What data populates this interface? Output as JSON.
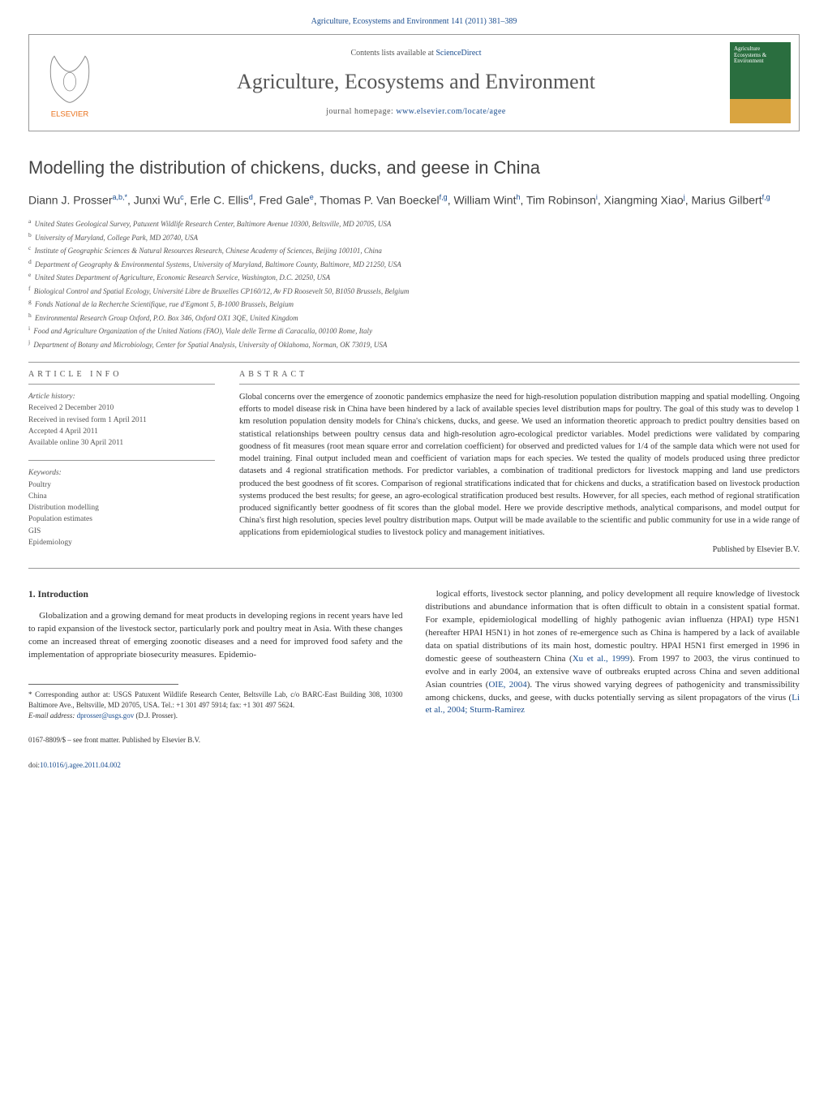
{
  "header": {
    "journal_ref": "Agriculture, Ecosystems and Environment 141 (2011) 381–389",
    "contents_prefix": "Contents lists available at ",
    "contents_link": "ScienceDirect",
    "journal_name": "Agriculture, Ecosystems and Environment",
    "homepage_prefix": "journal homepage: ",
    "homepage_link": "www.elsevier.com/locate/agee",
    "cover_line1": "Agriculture",
    "cover_line2": "Ecosystems &",
    "cover_line3": "Environment"
  },
  "article": {
    "title": "Modelling the distribution of chickens, ducks, and geese in China",
    "authors_html": "Diann J. Prosser<sup>a,b,*</sup>, Junxi Wu<sup>c</sup>, Erle C. Ellis<sup>d</sup>, Fred Gale<sup>e</sup>, Thomas P. Van Boeckel<sup>f,g</sup>, William Wint<sup>h</sup>, Tim Robinson<sup>i</sup>, Xiangming Xiao<sup>j</sup>, Marius Gilbert<sup>f,g</sup>"
  },
  "affiliations": [
    {
      "sup": "a",
      "text": "United States Geological Survey, Patuxent Wildlife Research Center, Baltimore Avenue 10300, Beltsville, MD 20705, USA"
    },
    {
      "sup": "b",
      "text": "University of Maryland, College Park, MD 20740, USA"
    },
    {
      "sup": "c",
      "text": "Institute of Geographic Sciences & Natural Resources Research, Chinese Academy of Sciences, Beijing 100101, China"
    },
    {
      "sup": "d",
      "text": "Department of Geography & Environmental Systems, University of Maryland, Baltimore County, Baltimore, MD 21250, USA"
    },
    {
      "sup": "e",
      "text": "United States Department of Agriculture, Economic Research Service, Washington, D.C. 20250, USA"
    },
    {
      "sup": "f",
      "text": "Biological Control and Spatial Ecology, Université Libre de Bruxelles CP160/12, Av FD Roosevelt 50, B1050 Brussels, Belgium"
    },
    {
      "sup": "g",
      "text": "Fonds National de la Recherche Scientifique, rue d'Egmont 5, B-1000 Brussels, Belgium"
    },
    {
      "sup": "h",
      "text": "Environmental Research Group Oxford, P.O. Box 346, Oxford OX1 3QE, United Kingdom"
    },
    {
      "sup": "i",
      "text": "Food and Agriculture Organization of the United Nations (FAO), Viale delle Terme di Caracalla, 00100 Rome, Italy"
    },
    {
      "sup": "j",
      "text": "Department of Botany and Microbiology, Center for Spatial Analysis, University of Oklahoma, Norman, OK 73019, USA"
    }
  ],
  "info": {
    "heading": "ARTICLE INFO",
    "history_label": "Article history:",
    "history": [
      "Received 2 December 2010",
      "Received in revised form 1 April 2011",
      "Accepted 4 April 2011",
      "Available online 30 April 2011"
    ],
    "keywords_label": "Keywords:",
    "keywords": [
      "Poultry",
      "China",
      "Distribution modelling",
      "Population estimates",
      "GIS",
      "Epidemiology"
    ]
  },
  "abstract": {
    "heading": "ABSTRACT",
    "text": "Global concerns over the emergence of zoonotic pandemics emphasize the need for high-resolution population distribution mapping and spatial modelling. Ongoing efforts to model disease risk in China have been hindered by a lack of available species level distribution maps for poultry. The goal of this study was to develop 1 km resolution population density models for China's chickens, ducks, and geese. We used an information theoretic approach to predict poultry densities based on statistical relationships between poultry census data and high-resolution agro-ecological predictor variables. Model predictions were validated by comparing goodness of fit measures (root mean square error and correlation coefficient) for observed and predicted values for 1/4 of the sample data which were not used for model training. Final output included mean and coefficient of variation maps for each species. We tested the quality of models produced using three predictor datasets and 4 regional stratification methods. For predictor variables, a combination of traditional predictors for livestock mapping and land use predictors produced the best goodness of fit scores. Comparison of regional stratifications indicated that for chickens and ducks, a stratification based on livestock production systems produced the best results; for geese, an agro-ecological stratification produced best results. However, for all species, each method of regional stratification produced significantly better goodness of fit scores than the global model. Here we provide descriptive methods, analytical comparisons, and model output for China's first high resolution, species level poultry distribution maps. Output will be made available to the scientific and public community for use in a wide range of applications from epidemiological studies to livestock policy and management initiatives.",
    "publisher": "Published by Elsevier B.V."
  },
  "body": {
    "section_heading": "1. Introduction",
    "col1_para": "Globalization and a growing demand for meat products in developing regions in recent years have led to rapid expansion of the livestock sector, particularly pork and poultry meat in Asia. With these changes come an increased threat of emerging zoonotic diseases and a need for improved food safety and the implementation of appropriate biosecurity measures. Epidemio-",
    "col2_para_pre": "logical efforts, livestock sector planning, and policy development all require knowledge of livestock distributions and abundance information that is often difficult to obtain in a consistent spatial format. For example, epidemiological modelling of highly pathogenic avian influenza (HPAI) type H5N1 (hereafter HPAI H5N1) in hot zones of re-emergence such as China is hampered by a lack of available data on spatial distributions of its main host, domestic poultry. HPAI H5N1 first emerged in 1996 in domestic geese of southeastern China (",
    "ref1": "Xu et al., 1999",
    "col2_para_mid1": "). From 1997 to 2003, the virus continued to evolve and in early 2004, an extensive wave of outbreaks erupted across China and seven additional Asian countries (",
    "ref2": "OIE, 2004",
    "col2_para_mid2": "). The virus showed varying degrees of pathogenicity and transmissibility among chickens, ducks, and geese, with ducks potentially serving as silent propagators of the virus (",
    "ref3": "Li et al., 2004; Sturm-Ramirez"
  },
  "footnote": {
    "corr_label": "* Corresponding author at: ",
    "corr_text": "USGS Patuxent Wildlife Research Center, Beltsville Lab, c/o BARC-East Building 308, 10300 Baltimore Ave., Beltsville, MD 20705, USA. Tel.: +1 301 497 5914; fax: +1 301 497 5624.",
    "email_label": "E-mail address: ",
    "email": "dprosser@usgs.gov",
    "email_suffix": " (D.J. Prosser)."
  },
  "footer": {
    "line1": "0167-8809/$ – see front matter. Published by Elsevier B.V.",
    "doi_prefix": "doi:",
    "doi": "10.1016/j.agee.2011.04.002"
  },
  "colors": {
    "link": "#1a4d8f",
    "text": "#333333",
    "muted": "#555555",
    "rule": "#999999",
    "elsevier_orange": "#e9711c",
    "cover_green": "#2a6e3f",
    "cover_gold": "#d9a440"
  }
}
